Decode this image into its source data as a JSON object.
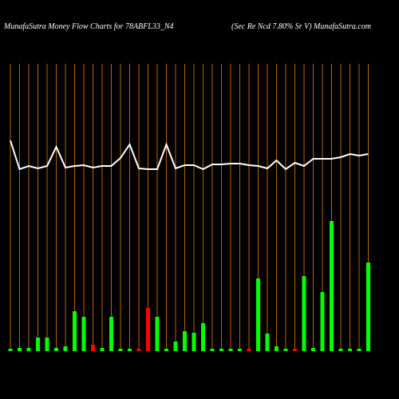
{
  "chart_data": {
    "type": "money-flow",
    "title": "MunafaSutra  Money Flow  Charts for 78ABFL33_N4",
    "subtitle": "(Sec Re   Ncd 7.80% Sr V) MunafaSutra.com",
    "categories": [
      null,
      null,
      null,
      null,
      null,
      null,
      null,
      null,
      null,
      null,
      null,
      null,
      null,
      null,
      null,
      null,
      null,
      null,
      null,
      null,
      null,
      null,
      null,
      null,
      null,
      null,
      null,
      null,
      null,
      null,
      null,
      null,
      null,
      null,
      null,
      null,
      null,
      null,
      null,
      null
    ],
    "series": [
      {
        "color": "#ffffff",
        "ylim": [
          -140,
          300
        ],
        "values": [
          124,
          88,
          92,
          89,
          92,
          116,
          90,
          92,
          93,
          90,
          92,
          92,
          102,
          119,
          89,
          88,
          88,
          119,
          89,
          93,
          93,
          88,
          94,
          94,
          95,
          95,
          93,
          92,
          89,
          99,
          88,
          96,
          92,
          101,
          101,
          101,
          103,
          107,
          105,
          107
        ]
      },
      {
        "ylim": [
          0,
          440
        ],
        "values": [
          3,
          4,
          4,
          17,
          17,
          4,
          6,
          50,
          43,
          8,
          4,
          43,
          3,
          3,
          3,
          54,
          43,
          3,
          12,
          25,
          23,
          35,
          3,
          3,
          3,
          3,
          3,
          91,
          22,
          6,
          3,
          3,
          94,
          4,
          74,
          163,
          3,
          3,
          3,
          111
        ],
        "colors": [
          "#00ff00",
          "#00ff00",
          "#00ff00",
          "#00ff00",
          "#00ff00",
          "#00ff00",
          "#00ff00",
          "#00ff00",
          "#00ff00",
          "#ff0000",
          "#00ff00",
          "#00ff00",
          "#00ff00",
          "#00ff00",
          "#ff0000",
          "#ff0000",
          "#00ff00",
          "#00ff00",
          "#00ff00",
          "#00ff00",
          "#00ff00",
          "#00ff00",
          "#00ff00",
          "#00ff00",
          "#00ff00",
          "#00ff00",
          "#ff0000",
          "#00ff00",
          "#00ff00",
          "#00ff00",
          "#00ff00",
          "#ff0000",
          "#00ff00",
          "#00ff00",
          "#00ff00",
          "#00ff00",
          "#00ff00",
          "#00ff00",
          "#00ff00",
          "#00ff00"
        ]
      }
    ],
    "grid_color": "#b8640a"
  }
}
